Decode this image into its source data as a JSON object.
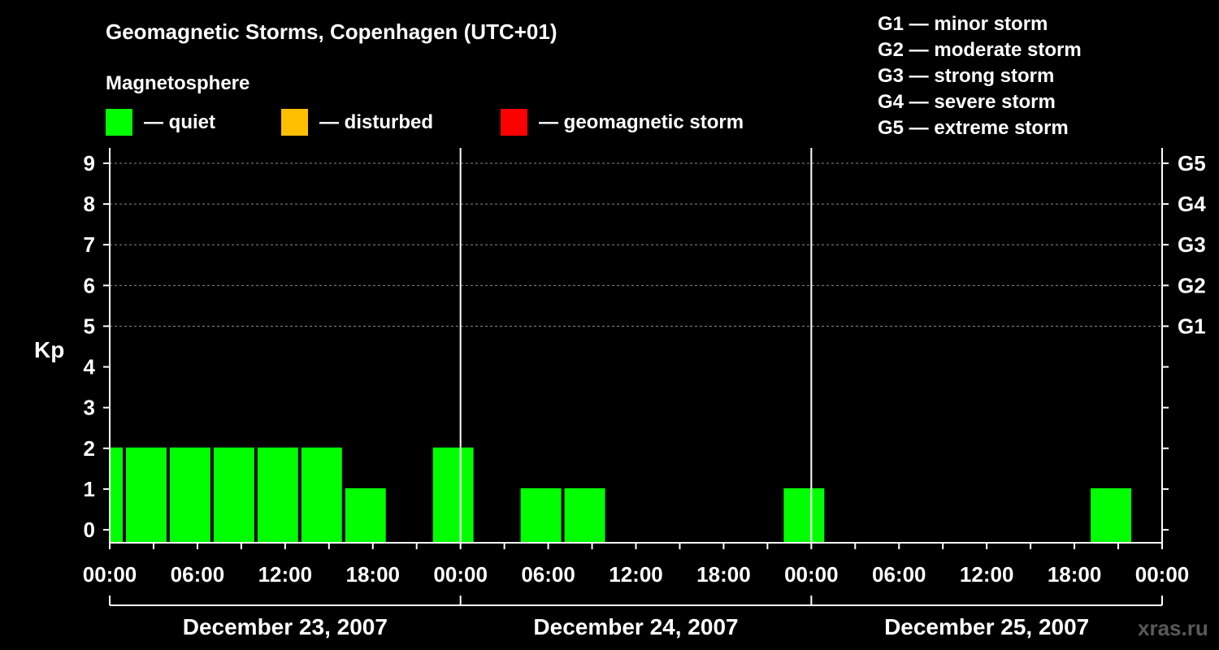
{
  "chart_data": {
    "type": "bar",
    "title": "Geomagnetic Storms, Copenhagen (UTC+01)",
    "subtitle": "Magnetosphere",
    "ylabel": "Kp",
    "ylim": [
      0,
      9
    ],
    "yticks": [
      "0",
      "1",
      "2",
      "3",
      "4",
      "5",
      "6",
      "7",
      "8",
      "9"
    ],
    "x_unit": "hours from 2007-12-23 00:00 (UTC+01)",
    "xlim": [
      0,
      72
    ],
    "xtick_labels": [
      "00:00",
      "06:00",
      "12:00",
      "18:00",
      "00:00",
      "06:00",
      "12:00",
      "18:00",
      "00:00",
      "06:00",
      "12:00",
      "18:00",
      "00:00"
    ],
    "right_axis_labels": [
      {
        "level": 5,
        "label": "G1"
      },
      {
        "level": 6,
        "label": "G2"
      },
      {
        "level": 7,
        "label": "G3"
      },
      {
        "level": 8,
        "label": "G4"
      },
      {
        "level": 9,
        "label": "G5"
      }
    ],
    "dates": [
      {
        "label": "December 23, 2007",
        "start": 0,
        "end": 24
      },
      {
        "label": "December 24, 2007",
        "start": 24,
        "end": 48
      },
      {
        "label": "December 25, 2007",
        "start": 48,
        "end": 72
      }
    ],
    "legend": {
      "heading": "Magnetosphere",
      "items": [
        {
          "label": "— quiet",
          "color": "#00ff00"
        },
        {
          "label": "— disturbed",
          "color": "#ffbf00"
        },
        {
          "label": "— geomagnetic storm",
          "color": "#ff0000"
        }
      ]
    },
    "storm_scale": [
      "G1 — minor storm",
      "G2 — moderate storm",
      "G3 — strong storm",
      "G4 — severe storm",
      "G5 — extreme storm"
    ],
    "bars": [
      {
        "start": 0,
        "end": 1,
        "kp": 2,
        "color": "#00ff00"
      },
      {
        "start": 1,
        "end": 4,
        "kp": 2,
        "color": "#00ff00"
      },
      {
        "start": 4,
        "end": 7,
        "kp": 2,
        "color": "#00ff00"
      },
      {
        "start": 7,
        "end": 10,
        "kp": 2,
        "color": "#00ff00"
      },
      {
        "start": 10,
        "end": 13,
        "kp": 2,
        "color": "#00ff00"
      },
      {
        "start": 13,
        "end": 16,
        "kp": 2,
        "color": "#00ff00"
      },
      {
        "start": 16,
        "end": 19,
        "kp": 1,
        "color": "#00ff00"
      },
      {
        "start": 22,
        "end": 25,
        "kp": 2,
        "color": "#00ff00"
      },
      {
        "start": 28,
        "end": 31,
        "kp": 1,
        "color": "#00ff00"
      },
      {
        "start": 31,
        "end": 34,
        "kp": 1,
        "color": "#00ff00"
      },
      {
        "start": 46,
        "end": 49,
        "kp": 1,
        "color": "#00ff00"
      },
      {
        "start": 67,
        "end": 70,
        "kp": 1,
        "color": "#00ff00"
      }
    ],
    "watermark": "xras.ru"
  }
}
